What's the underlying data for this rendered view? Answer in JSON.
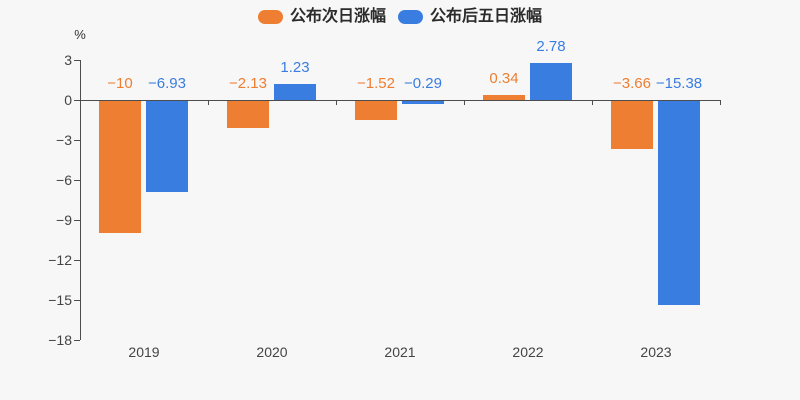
{
  "chart_data": {
    "type": "bar",
    "title": "",
    "unit_label": "%",
    "categories": [
      "2019",
      "2020",
      "2021",
      "2022",
      "2023"
    ],
    "series": [
      {
        "name": "公布次日涨幅",
        "color": "#ee7e31",
        "values": [
          -10,
          -2.13,
          -1.52,
          0.34,
          -3.66
        ]
      },
      {
        "name": "公布后五日涨幅",
        "color": "#3a7de0",
        "values": [
          -6.93,
          1.23,
          -0.29,
          2.78,
          -15.38
        ]
      }
    ],
    "yticks": [
      3,
      0,
      -3,
      -6,
      -9,
      -12,
      -15,
      -18
    ],
    "ylim": [
      -18,
      3
    ],
    "grid": false,
    "legend_position": "top-center",
    "value_labels_shown": true,
    "colors": {
      "background": "#f7f7f7",
      "axis_line": "#4d4d4d",
      "axis_text": "#444444",
      "legend_text": "#2b2b2b"
    }
  }
}
